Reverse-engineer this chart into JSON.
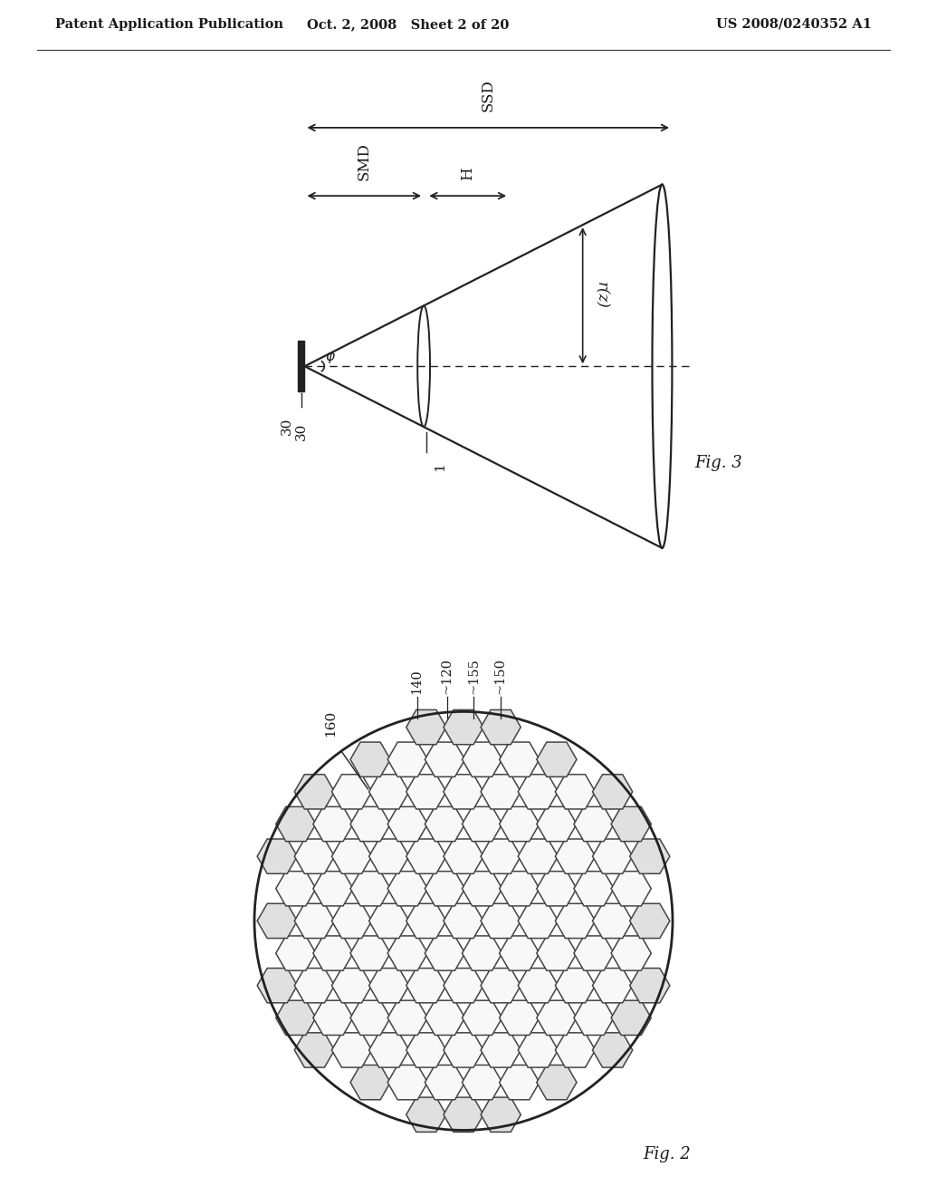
{
  "bg_color": "#ffffff",
  "header_left": "Patent Application Publication",
  "header_mid": "Oct. 2, 2008   Sheet 2 of 20",
  "header_right": "US 2008/0240352 A1",
  "fig3_label": "Fig. 3",
  "fig2_label": "Fig. 2",
  "text_color": "#1a1a1a",
  "line_color": "#222222",
  "hex_face_inner": "#ffffff",
  "hex_face_outer": "#d0d0d0",
  "hex_edge_color": "#444444"
}
